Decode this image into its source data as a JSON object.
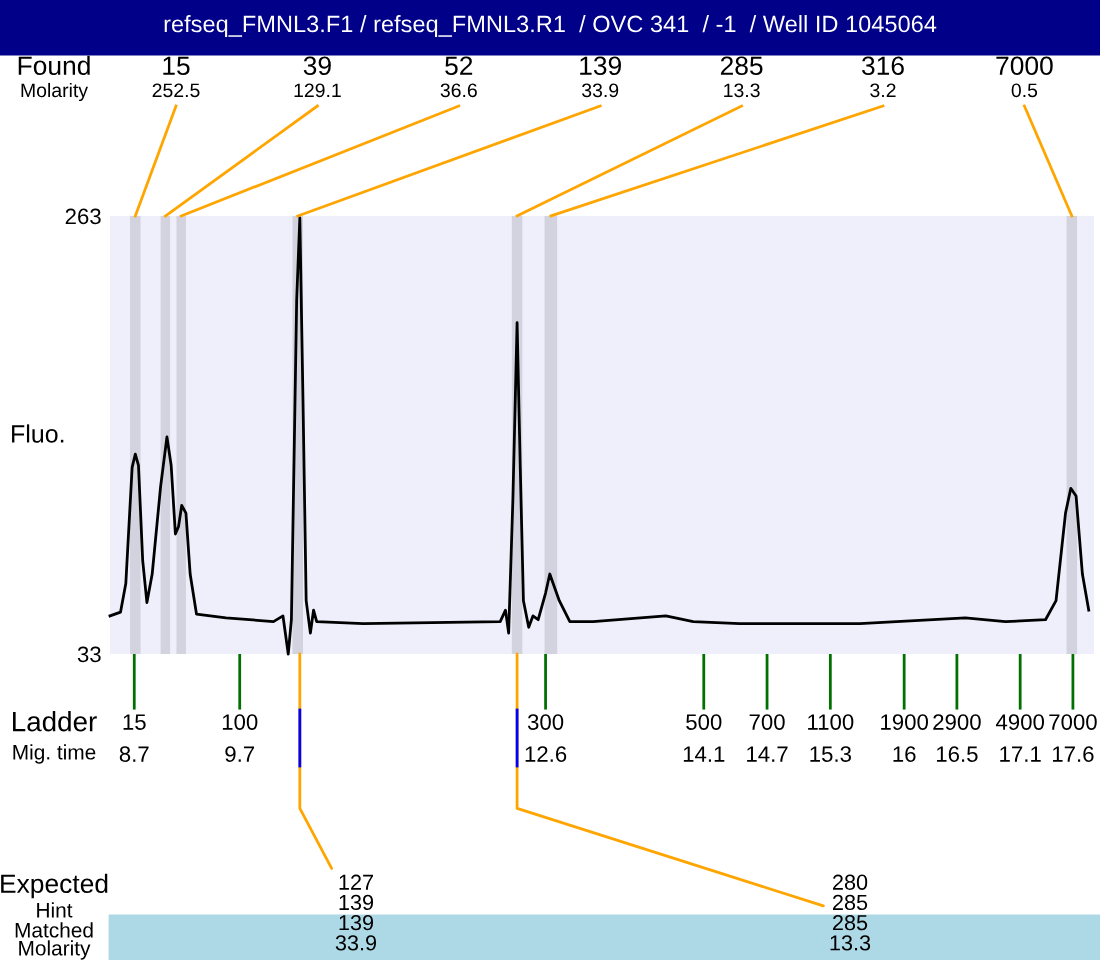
{
  "chart_data": {
    "type": "line",
    "title": "refseq_FMNL3.F1 / refseq_FMNL3.R1  / OVC 341  / -1  / Well ID 1045064",
    "ylabel": "Fluo.",
    "x": [
      8.47,
      8.57,
      8.62,
      8.68,
      8.71,
      8.74,
      8.78,
      8.82,
      8.87,
      8.95,
      9.01,
      9.05,
      9.09,
      9.12,
      9.15,
      9.19,
      9.23,
      9.29,
      9.57,
      10.02,
      10.11,
      10.16,
      10.19,
      10.24,
      10.27,
      10.3,
      10.33,
      10.37,
      10.4,
      10.43,
      10.87,
      12.17,
      12.22,
      12.25,
      12.29,
      12.33,
      12.36,
      12.39,
      12.44,
      12.48,
      12.53,
      12.6,
      12.64,
      12.73,
      12.83,
      13.05,
      13.74,
      14.0,
      14.44,
      15.58,
      16.58,
      16.96,
      17.34,
      17.44,
      17.53,
      17.58,
      17.63,
      17.69,
      17.75
    ],
    "series": [
      {
        "color": "#000000",
        "values": [
          53,
          55,
          70,
          131,
          138,
          132,
          82,
          60,
          75,
          121,
          147,
          132,
          96,
          100,
          111,
          107,
          75,
          54,
          52,
          50,
          53,
          33,
          51,
          219,
          262,
          166,
          61,
          44,
          56,
          50,
          49,
          50,
          56,
          44,
          114,
          207,
          131,
          61,
          47,
          53,
          51,
          65,
          75,
          61,
          50,
          50,
          53,
          50,
          49,
          49,
          52,
          50,
          51,
          61,
          107,
          120,
          116,
          75,
          56
        ]
      }
    ],
    "xlim": [
      8.47,
      17.8
    ],
    "ylim": [
      33,
      263
    ],
    "yticks": [
      33,
      263
    ],
    "xticks": [
      8.7,
      9.7,
      12.6,
      14.1,
      14.7,
      15.3,
      16,
      16.5,
      17.1,
      17.6
    ],
    "bands": [
      {
        "axis": "x",
        "from": 8.66,
        "to": 8.76,
        "label": "15\n252.5",
        "color": "#d3d3e0"
      },
      {
        "axis": "x",
        "from": 8.95,
        "to": 9.04,
        "label": "39\n129.1",
        "color": "#d3d3e0"
      },
      {
        "axis": "x",
        "from": 9.1,
        "to": 9.19,
        "label": "52\n36.6",
        "color": "#d3d3e0"
      },
      {
        "axis": "x",
        "from": 10.2,
        "to": 10.3,
        "label": "139\n33.9",
        "color": "#d3d3e0"
      },
      {
        "axis": "x",
        "from": 12.28,
        "to": 12.38,
        "label": "285\n13.3",
        "color": "#d3d3e0"
      },
      {
        "axis": "x",
        "from": 12.59,
        "to": 12.71,
        "label": "316\n3.2",
        "color": "#d3d3e0"
      },
      {
        "axis": "x",
        "from": 17.54,
        "to": 17.64,
        "label": "7000\n0.5",
        "color": "#d3d3e0"
      }
    ],
    "annotations": [
      "Found",
      "Molarity",
      "Ladder",
      "Mig. time",
      "Expected",
      "Hint",
      "Matched",
      "Molarity",
      {
        "text": "127\n139\n139\n33.9",
        "x": 10.27,
        "y": 33
      },
      {
        "text": "280\n285\n285\n13.3",
        "x": 12.33,
        "y": 33
      },
      "15",
      "100",
      "300",
      "500",
      "700",
      "1100",
      "1900",
      "2900",
      "4900",
      "7000"
    ],
    "grid": false,
    "legend": false
  }
}
